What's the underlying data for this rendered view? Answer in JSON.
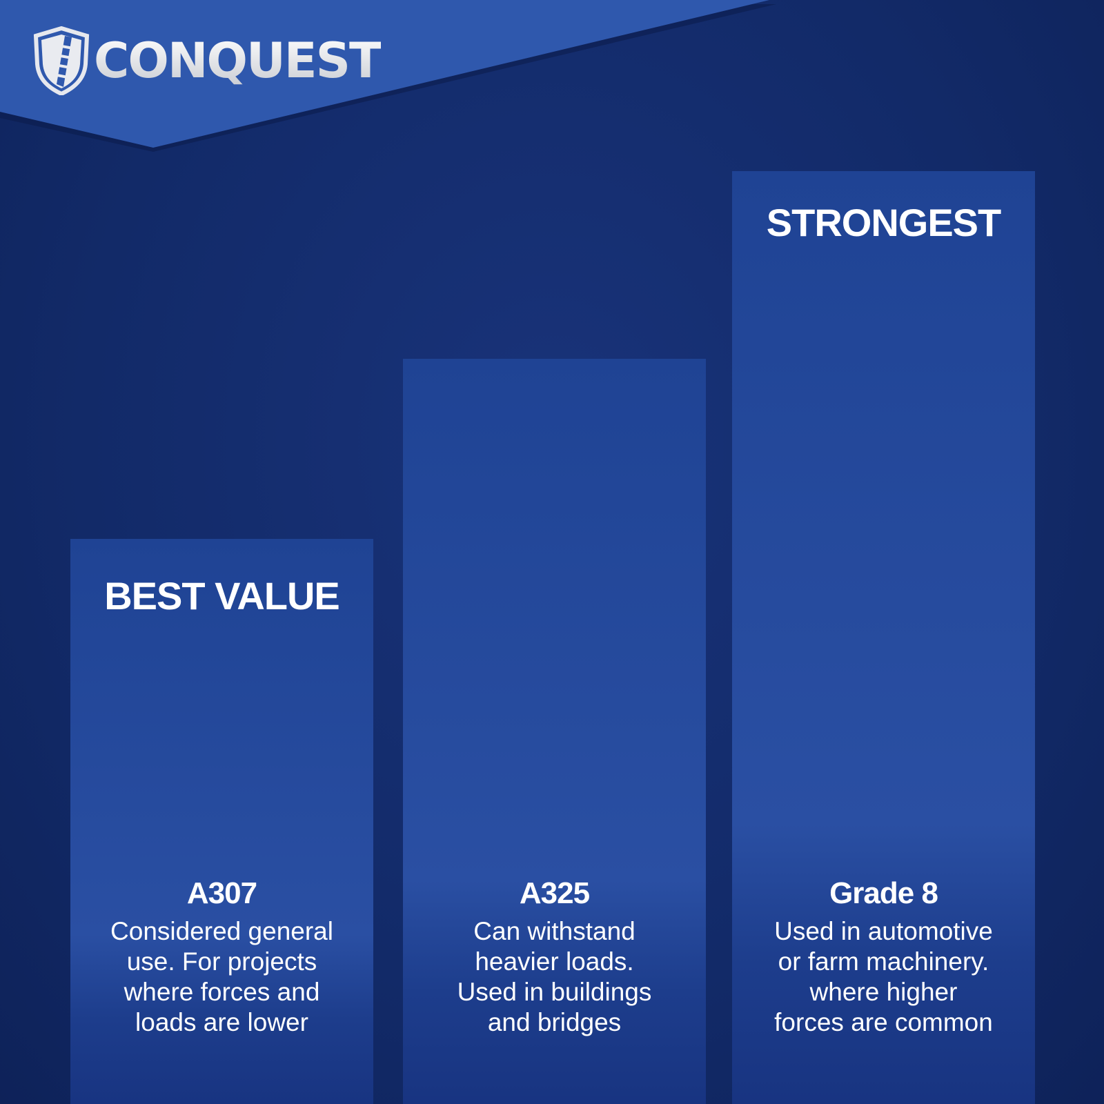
{
  "brand": {
    "name": "CONQUEST",
    "icon": "shield-bolt-icon"
  },
  "colors": {
    "banner": "#2f58ad",
    "background": "#132b6b",
    "bar": "#2a4fa3",
    "text": "#ffffff"
  },
  "bars": [
    {
      "badge": "BEST VALUE",
      "title": "A307",
      "description": "Considered general\nuse. For projects\nwhere forces and\nloads are lower"
    },
    {
      "badge": "",
      "title": "A325",
      "description": "Can withstand\nheavier loads.\nUsed in buildings\nand bridges"
    },
    {
      "badge": "STRONGEST",
      "title": "Grade 8",
      "description": "Used in automotive\nor farm machinery.\nwhere higher\nforces are common"
    }
  ]
}
